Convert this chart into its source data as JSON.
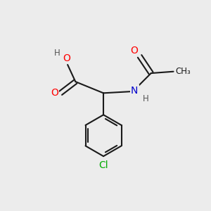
{
  "bg_color": "#ececec",
  "bond_color": "#1a1a1a",
  "bond_width": 1.5,
  "atom_colors": {
    "O": "#ff0000",
    "N": "#0000cc",
    "Cl": "#00aa00",
    "C": "#1a1a1a",
    "H": "#555555"
  },
  "font_size_atom": 10,
  "font_size_small": 8.5,
  "figsize": [
    3.0,
    3.0
  ],
  "dpi": 100
}
